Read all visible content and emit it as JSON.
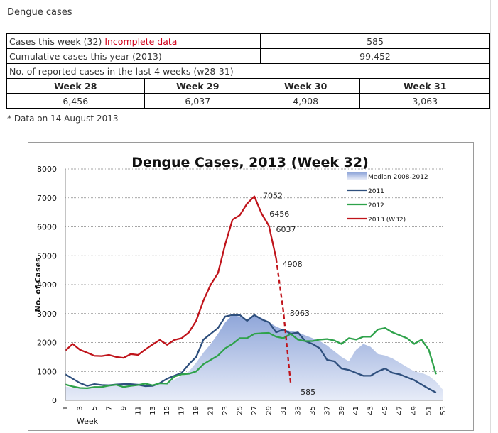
{
  "page_title": "Dengue cases",
  "stats": {
    "this_week_label": "Cases this week (32)",
    "incomplete_note": "Incomplete data",
    "this_week_value": "585",
    "cumulative_label": "Cumulative cases  this year (2013)",
    "cumulative_value": "99,452",
    "last4_label": "No. of reported cases in the last 4 weeks (w28-31)",
    "weeks": [
      {
        "label": "Week 28",
        "value": "6,456"
      },
      {
        "label": "Week 29",
        "value": "6,037"
      },
      {
        "label": "Week 30",
        "value": "4,908"
      },
      {
        "label": "Week 31",
        "value": "3,063"
      }
    ]
  },
  "footnote": "* Data on 14 August 2013",
  "chart_data": {
    "type": "line",
    "title": "Dengue Cases, 2013 (Week 32)",
    "xlabel": "Week",
    "ylabel": "No. of Cases",
    "xlim": [
      1,
      53
    ],
    "ylim": [
      0,
      8000
    ],
    "yticks": [
      0,
      1000,
      2000,
      3000,
      4000,
      5000,
      6000,
      7000,
      8000
    ],
    "xticks": [
      1,
      3,
      5,
      7,
      9,
      11,
      13,
      15,
      17,
      19,
      21,
      23,
      25,
      27,
      29,
      31,
      33,
      35,
      37,
      39,
      41,
      43,
      45,
      47,
      49,
      51,
      53
    ],
    "colors": {
      "median": "#b9c9ea",
      "y2011": "#2e4f7d",
      "y2012": "#2ea24a",
      "y2013": "#c0141b",
      "grid": "#888888"
    },
    "series": [
      {
        "name": "Median 2008-2012",
        "kind": "area",
        "x": [
          1,
          2,
          3,
          4,
          5,
          6,
          7,
          8,
          9,
          10,
          11,
          12,
          13,
          14,
          15,
          16,
          17,
          18,
          19,
          20,
          21,
          22,
          23,
          24,
          25,
          26,
          27,
          28,
          29,
          30,
          31,
          32,
          33,
          34,
          35,
          36,
          37,
          38,
          39,
          40,
          41,
          42,
          43,
          44,
          45,
          46,
          47,
          48,
          49,
          50,
          51,
          52,
          53
        ],
        "values": [
          480,
          440,
          420,
          430,
          470,
          480,
          490,
          520,
          560,
          560,
          580,
          560,
          520,
          560,
          600,
          720,
          850,
          1000,
          1300,
          1650,
          1950,
          2300,
          2700,
          2950,
          2900,
          2800,
          2950,
          2850,
          2700,
          2550,
          2450,
          2400,
          2350,
          2250,
          2150,
          2050,
          1900,
          1700,
          1500,
          1350,
          1750,
          1950,
          1850,
          1600,
          1550,
          1450,
          1300,
          1150,
          1000,
          950,
          850,
          650,
          350
        ]
      },
      {
        "name": "2011",
        "kind": "line",
        "x": [
          1,
          2,
          3,
          4,
          5,
          6,
          7,
          8,
          9,
          10,
          11,
          12,
          13,
          14,
          15,
          16,
          17,
          18,
          19,
          20,
          21,
          22,
          23,
          24,
          25,
          26,
          27,
          28,
          29,
          30,
          31,
          32,
          33,
          34,
          35,
          36,
          37,
          38,
          39,
          40,
          41,
          42,
          43,
          44,
          45,
          46,
          47,
          48,
          49,
          50,
          51,
          52
        ],
        "values": [
          900,
          750,
          600,
          500,
          560,
          530,
          520,
          550,
          560,
          560,
          540,
          490,
          500,
          600,
          750,
          850,
          950,
          1250,
          1500,
          2100,
          2300,
          2500,
          2900,
          2950,
          2950,
          2750,
          2950,
          2800,
          2700,
          2350,
          2450,
          2300,
          2350,
          2050,
          1950,
          1800,
          1400,
          1350,
          1100,
          1050,
          950,
          850,
          850,
          1000,
          1100,
          950,
          900,
          800,
          700,
          550,
          400,
          270
        ]
      },
      {
        "name": "2012",
        "kind": "line",
        "x": [
          1,
          2,
          3,
          4,
          5,
          6,
          7,
          8,
          9,
          10,
          11,
          12,
          13,
          14,
          15,
          16,
          17,
          18,
          19,
          20,
          21,
          22,
          23,
          24,
          25,
          26,
          27,
          28,
          29,
          30,
          31,
          32,
          33,
          34,
          35,
          36,
          37,
          38,
          39,
          40,
          41,
          42,
          43,
          44,
          45,
          46,
          47,
          48,
          49,
          50,
          51,
          52
        ],
        "values": [
          550,
          480,
          430,
          420,
          460,
          460,
          510,
          540,
          460,
          500,
          530,
          580,
          520,
          590,
          580,
          820,
          900,
          920,
          1000,
          1250,
          1400,
          1550,
          1800,
          1950,
          2150,
          2150,
          2300,
          2320,
          2330,
          2200,
          2150,
          2300,
          2100,
          2050,
          2050,
          2100,
          2120,
          2070,
          1950,
          2150,
          2100,
          2200,
          2200,
          2450,
          2500,
          2350,
          2250,
          2150,
          1950,
          2100,
          1750,
          900
        ]
      },
      {
        "name": "2013 (W32)",
        "kind": "line",
        "x": [
          1,
          2,
          3,
          4,
          5,
          6,
          7,
          8,
          9,
          10,
          11,
          12,
          13,
          14,
          15,
          16,
          17,
          18,
          19,
          20,
          21,
          22,
          23,
          24,
          25,
          26,
          27,
          28,
          29,
          30,
          31,
          32
        ],
        "values": [
          1720,
          1950,
          1750,
          1650,
          1540,
          1530,
          1570,
          1500,
          1470,
          1600,
          1570,
          1760,
          1930,
          2090,
          1920,
          2090,
          2150,
          2350,
          2750,
          3450,
          4000,
          4400,
          5400,
          6250,
          6400,
          6800,
          7052,
          6456,
          6037,
          4908,
          3063,
          585
        ],
        "solid_until_week": 30
      }
    ],
    "data_labels": [
      {
        "x": 27,
        "y": 7052,
        "text": "7052"
      },
      {
        "x": 28,
        "y": 6456,
        "text": "6456"
      },
      {
        "x": 29,
        "y": 6037,
        "text": "6037"
      },
      {
        "x": 30,
        "y": 4908,
        "text": "4908"
      },
      {
        "x": 31,
        "y": 3063,
        "text": "3063"
      },
      {
        "x": 32,
        "y": 585,
        "text": "585"
      }
    ],
    "legend": {
      "placement": "top-right",
      "items": [
        "Median 2008-2012",
        "2011",
        "2012",
        "2013 (W32)"
      ]
    }
  }
}
